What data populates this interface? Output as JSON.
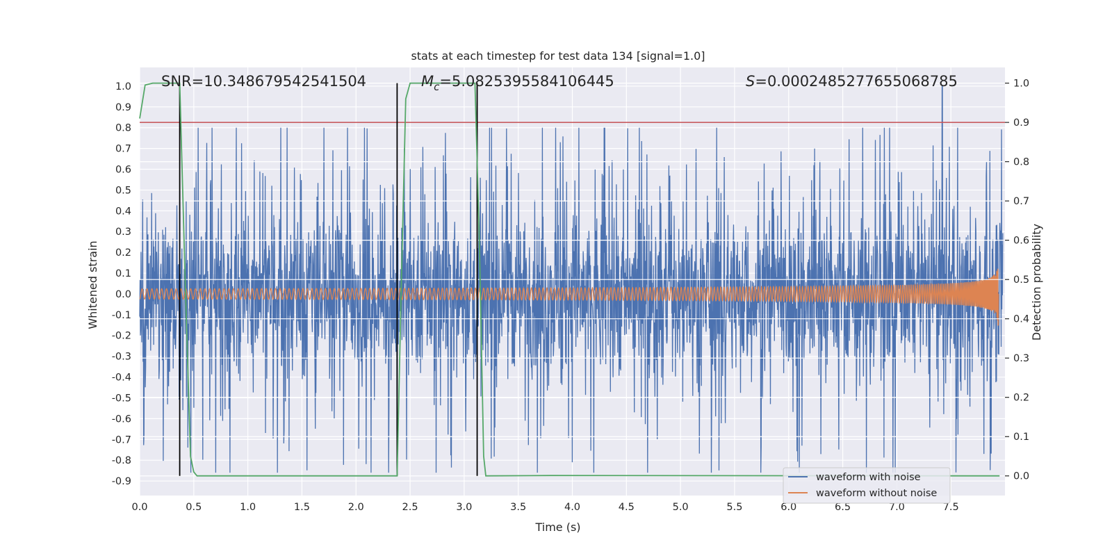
{
  "chart_data": {
    "type": "line",
    "title": "stats at each timestep for test data 134 [signal=1.0]",
    "xlabel": "Time (s)",
    "ylabel_left": "Whitened strain",
    "ylabel_right": "Detection probability",
    "xlim": [
      0.0,
      8.0
    ],
    "ylim_left": [
      -0.97,
      1.09
    ],
    "ylim_right": [
      -0.05,
      1.04
    ],
    "x_ticks": [
      "0.0",
      "0.5",
      "1.0",
      "1.5",
      "2.0",
      "2.5",
      "3.0",
      "3.5",
      "4.0",
      "4.5",
      "5.0",
      "5.5",
      "6.0",
      "6.5",
      "7.0",
      "7.5"
    ],
    "y_ticks_left": [
      "1.0",
      "0.9",
      "0.8",
      "0.7",
      "0.6",
      "0.5",
      "0.4",
      "0.3",
      "0.2",
      "0.1",
      "0.0",
      "-0.1",
      "-0.2",
      "-0.3",
      "-0.4",
      "-0.5",
      "-0.6",
      "-0.7",
      "-0.8",
      "-0.9"
    ],
    "y_ticks_right": [
      "1.0",
      "0.9",
      "0.8",
      "0.7",
      "0.6",
      "0.5",
      "0.4",
      "0.3",
      "0.2",
      "0.1",
      "0.0"
    ],
    "grid": true,
    "legend_position": "bottom-right",
    "annotations": {
      "snr": "SNR=10.348679542541504",
      "mc_symbol": "M",
      "mc_sub": "c",
      "mc_value": "=5.0825395584106445",
      "s_symbol": "S",
      "s_value": "=0.0002485277655068785"
    },
    "colors": {
      "noisy": "#4c72b0",
      "clean": "#dd8452",
      "probability": "#55a868",
      "threshold": "#c44e52",
      "markers": "#000000",
      "background": "#eaeaf2",
      "grid": "#ffffff"
    },
    "series": [
      {
        "name": "waveform with noise",
        "axis": "left",
        "description_values": "noisy whitened strain, mostly within -0.9 to 0.85, peak 1.0 near t=7.42",
        "envelope_peak": 1.0,
        "envelope_peak_x": 7.42
      },
      {
        "name": "waveform without noise",
        "axis": "left",
        "chirp_start_amp": 0.025,
        "chirp_end_amp": 0.21,
        "chirp_end_x": 7.94
      },
      {
        "axis": "right",
        "x": [
          0.0,
          0.05,
          0.12,
          0.37,
          0.42,
          0.47,
          0.5,
          0.53,
          2.38,
          2.42,
          2.46,
          2.5,
          3.1,
          3.14,
          3.18,
          3.2,
          3.8,
          7.95
        ],
        "y": [
          0.91,
          0.995,
          1.0,
          1.0,
          0.5,
          0.05,
          0.01,
          0.0,
          0.0,
          0.5,
          0.96,
          1.0,
          1.0,
          0.6,
          0.05,
          0.0,
          0.001,
          0.0
        ]
      },
      {
        "axis": "right",
        "type": "hline",
        "y": 0.9
      },
      {
        "type": "vlines",
        "x": [
          0.37,
          2.38,
          3.12
        ],
        "y_range_right": [
          0.0,
          1.0
        ]
      }
    ]
  }
}
